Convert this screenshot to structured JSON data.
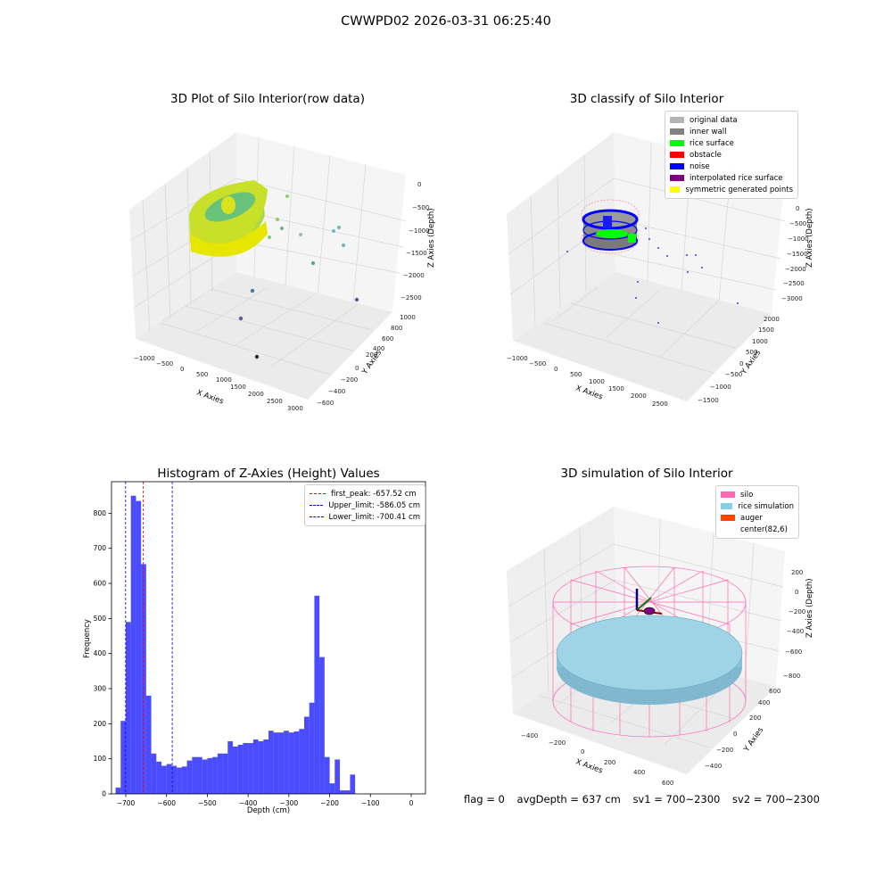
{
  "suptitle": "CWWPD02 2026-03-31 06:25:40",
  "panels": {
    "raw": {
      "title": "3D Plot of Silo Interior(row data)",
      "xlabel": "X Axies",
      "ylabel": "Y Axies",
      "zlabel": "Z Axies (Depth)",
      "xticks": [
        "−1000",
        "−500",
        "0",
        "500",
        "1000",
        "1500",
        "2000",
        "2500",
        "3000"
      ],
      "yticks": [
        "−600",
        "−400",
        "−200",
        "0",
        "200",
        "400",
        "600",
        "800",
        "1000"
      ],
      "zticks": [
        "0",
        "−500",
        "−1000",
        "−1500",
        "−2000",
        "−2500"
      ]
    },
    "classify": {
      "title": "3D classify of Silo Interior",
      "xlabel": "X Axies",
      "ylabel": "Y Axies",
      "zlabel": "Z Axies (Depth)",
      "xticks": [
        "−1000",
        "−500",
        "0",
        "500",
        "1000",
        "1500",
        "2000",
        "2500"
      ],
      "yticks": [
        "−1500",
        "−1000",
        "−500",
        "0",
        "500",
        "1000",
        "1500",
        "2000"
      ],
      "zticks": [
        "0",
        "−500",
        "−1000",
        "−1500",
        "−2000",
        "−2500",
        "−3000"
      ],
      "legend": [
        {
          "label": "original data",
          "color": "#b4b4b4"
        },
        {
          "label": "inner wall",
          "color": "#808080"
        },
        {
          "label": "rice surface",
          "color": "#00ff00"
        },
        {
          "label": "obstacle",
          "color": "#ff0000"
        },
        {
          "label": "noise",
          "color": "#0000ff"
        },
        {
          "label": "interpolated rice surface",
          "color": "#800080"
        },
        {
          "label": "symmetric generated points",
          "color": "#ffff00"
        }
      ]
    },
    "simulation": {
      "title": "3D simulation of Silo Interior",
      "xlabel": "X Axies",
      "ylabel": "Y Axies",
      "zlabel": "Z Axies (Depth)",
      "xticks": [
        "−400",
        "−200",
        "0",
        "200",
        "400",
        "600"
      ],
      "yticks": [
        "−400",
        "−200",
        "0",
        "200",
        "400",
        "600"
      ],
      "zticks": [
        "200",
        "0",
        "−200",
        "−400",
        "−600",
        "−800"
      ],
      "legend": [
        {
          "label": "silo",
          "color": "#ff69b4"
        },
        {
          "label": "rice simulation",
          "color": "#87ceeb"
        },
        {
          "label": "auger",
          "color": "#ff4500"
        },
        {
          "label": "center(82,6)",
          "color": "#ffffff"
        }
      ]
    }
  },
  "chart_data": {
    "type": "bar",
    "title": "Histogram of Z-Axies (Height) Values",
    "xlabel": "Depth (cm)",
    "ylabel": "Frequency",
    "xlim": [
      -735,
      35
    ],
    "ylim": [
      0,
      890
    ],
    "bin_width": 12.5,
    "bin_start": -725,
    "color": "#0000ff",
    "values": [
      18,
      208,
      490,
      850,
      835,
      655,
      280,
      115,
      92,
      80,
      85,
      80,
      75,
      78,
      95,
      105,
      105,
      98,
      102,
      105,
      115,
      115,
      150,
      135,
      140,
      145,
      145,
      155,
      150,
      155,
      180,
      175,
      175,
      180,
      175,
      178,
      185,
      220,
      260,
      565,
      390,
      105,
      30,
      98,
      10,
      10,
      55
    ],
    "xticks": [
      -700,
      -600,
      -500,
      -400,
      -300,
      -200,
      -100,
      0
    ],
    "xtick_labels": [
      "−700",
      "−600",
      "−500",
      "−400",
      "−300",
      "−200",
      "−100",
      "0"
    ],
    "yticks": [
      0,
      100,
      200,
      300,
      400,
      500,
      600,
      700,
      800
    ],
    "lines": [
      {
        "label": "first_peak: -657.52 cm",
        "x": -657.52,
        "color": "#ff0000"
      },
      {
        "label": "Upper_limit: -586.05 cm",
        "x": -586.05,
        "color": "#0000cc"
      },
      {
        "label": "Lower_limit: -700.41 cm",
        "x": -700.41,
        "color": "#0000cc"
      }
    ],
    "legend_position": "top-right"
  },
  "footer": {
    "flag": "flag = 0",
    "avg_depth": "avgDepth = 637 cm",
    "sv1": "sv1 = 700~2300",
    "sv2": "sv2 = 700~2300"
  }
}
